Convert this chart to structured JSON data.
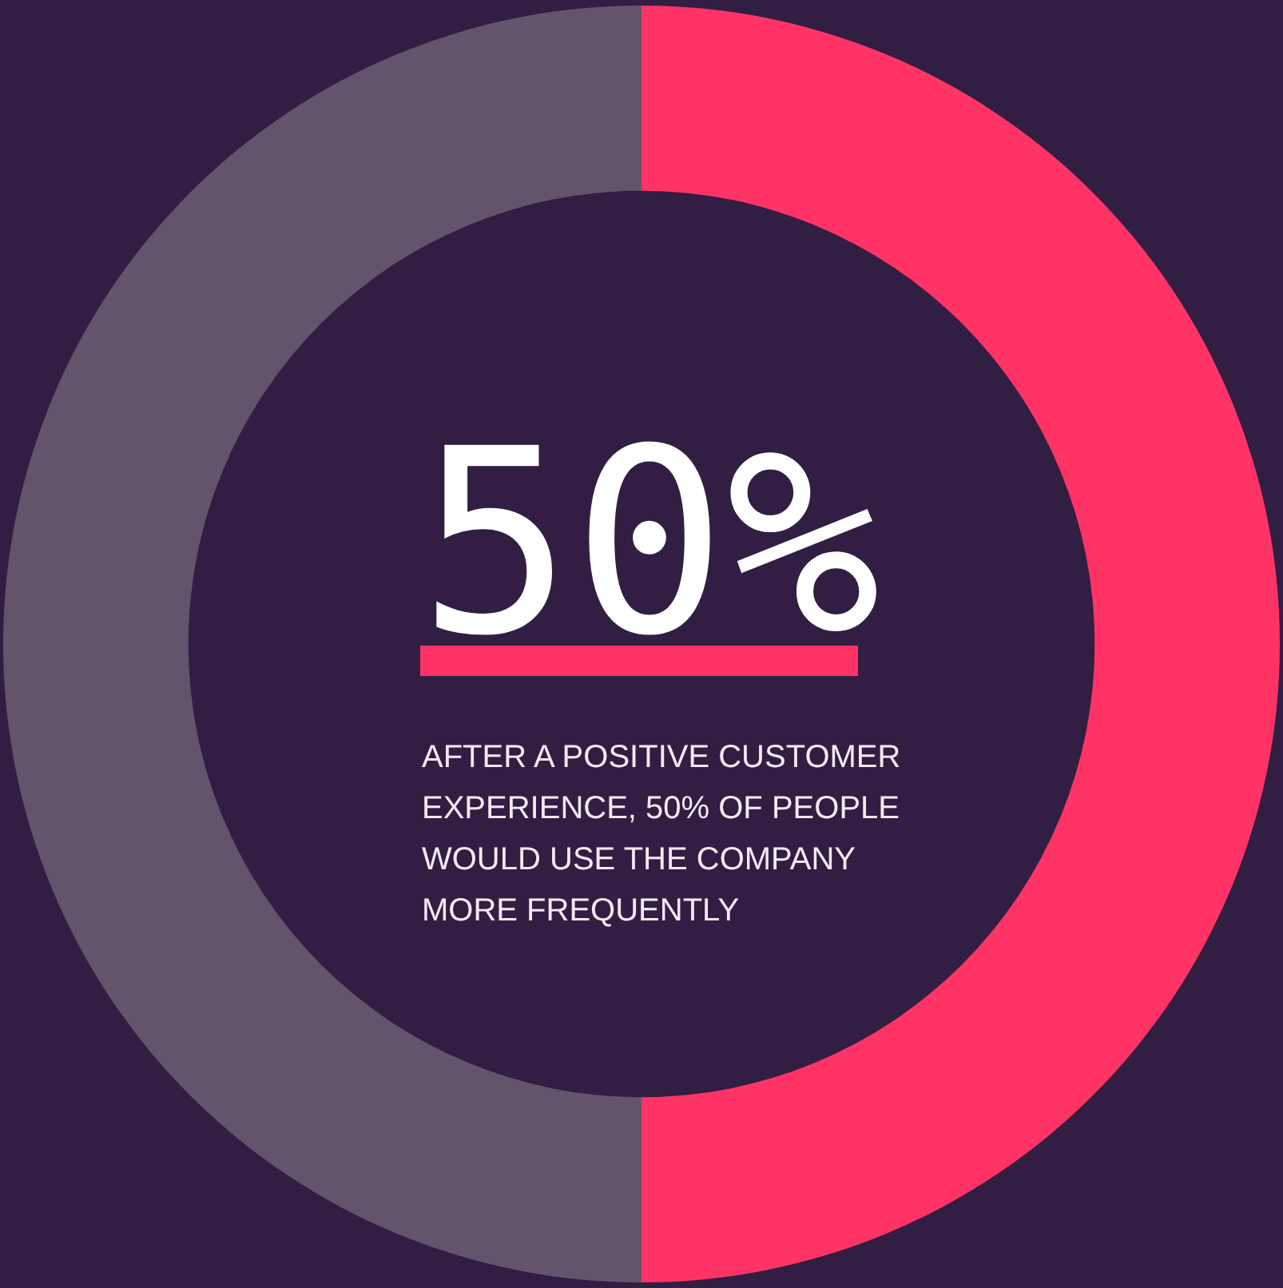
{
  "chart_data": {
    "type": "donut",
    "title": "50%",
    "categories": [
      null,
      null
    ],
    "values": [
      50,
      50
    ],
    "colors": [
      "#ff3366",
      "#62546c"
    ],
    "legend": false,
    "annotations": [
      "AFTER A POSITIVE CUSTOMER EXPERIENCE, 50% OF PEOPLE WOULD USE THE COMPANY MORE FREQUENTLY"
    ]
  }
}
